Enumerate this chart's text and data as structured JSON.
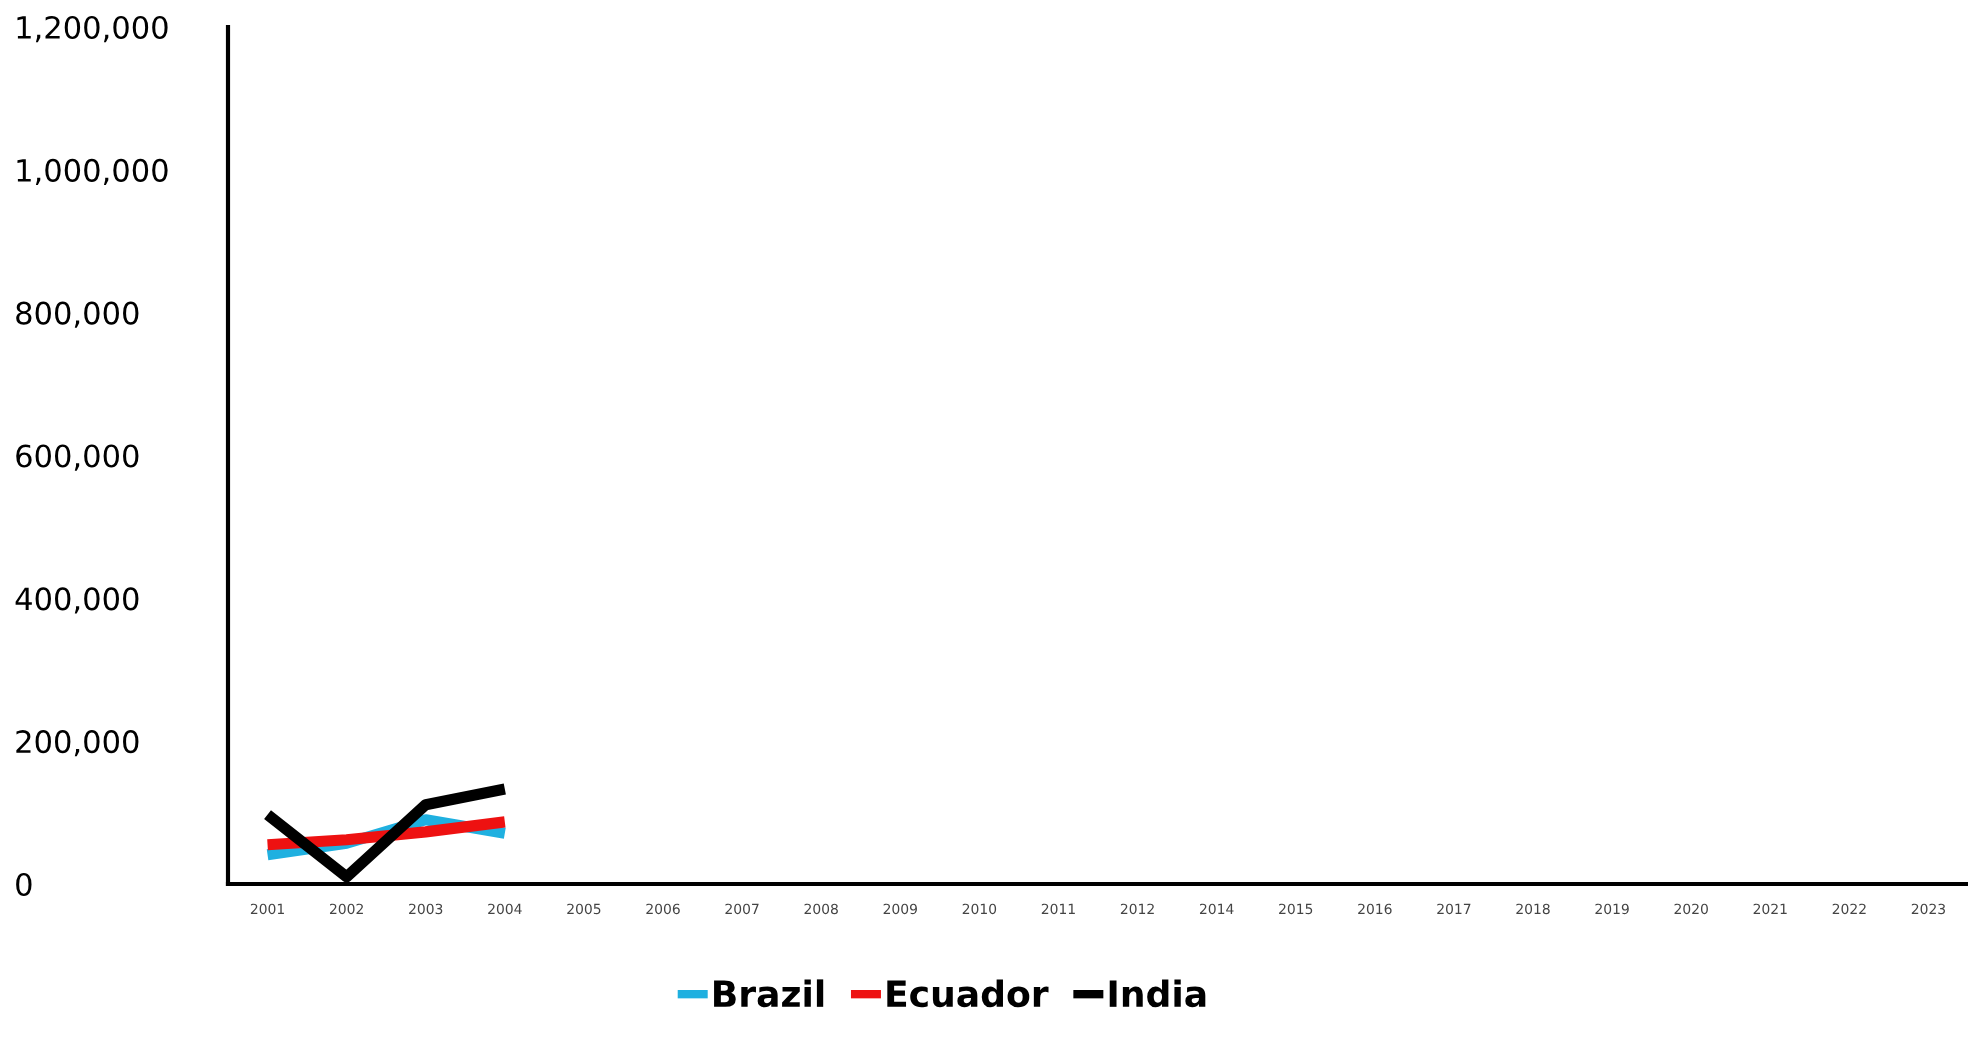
{
  "chart_data": {
    "type": "line",
    "categories": [
      "2001",
      "2002",
      "2003",
      "2004",
      "2005",
      "2006",
      "2007",
      "2008",
      "2009",
      "2010",
      "2011",
      "2012",
      "2014",
      "2015",
      "2016",
      "2017",
      "2018",
      "2019",
      "2020",
      "2021",
      "2022",
      "2023"
    ],
    "series": [
      {
        "name": "Brazil",
        "color": "#1fb0e0",
        "values": [
          41000,
          57000,
          90000,
          71000,
          null,
          null,
          null,
          null,
          null,
          null,
          null,
          null,
          null,
          null,
          null,
          null,
          null,
          null,
          null,
          null,
          null,
          null
        ]
      },
      {
        "name": "Ecuador",
        "color": "#ee1111",
        "values": [
          55000,
          62000,
          73000,
          87000,
          null,
          null,
          null,
          null,
          null,
          null,
          null,
          null,
          null,
          null,
          null,
          null,
          null,
          null,
          null,
          null,
          null,
          null
        ]
      },
      {
        "name": "India",
        "color": "#000000",
        "values": [
          97000,
          10000,
          111000,
          133000,
          null,
          null,
          null,
          null,
          null,
          null,
          null,
          null,
          null,
          null,
          null,
          null,
          null,
          null,
          null,
          null,
          null,
          null
        ]
      }
    ],
    "ylim": [
      0,
      1200000
    ],
    "yticks": [
      {
        "value": 0,
        "label": "0"
      },
      {
        "value": 200000,
        "label": "200,000"
      },
      {
        "value": 400000,
        "label": "400,000"
      },
      {
        "value": 600000,
        "label": "600,000"
      },
      {
        "value": 800000,
        "label": "800,000"
      },
      {
        "value": 1000000,
        "label": "1,000,000"
      },
      {
        "value": 1200000,
        "label": "1,200,000"
      }
    ],
    "grid": false,
    "legend": "bottom",
    "marker": "none",
    "line_style": "solid"
  }
}
